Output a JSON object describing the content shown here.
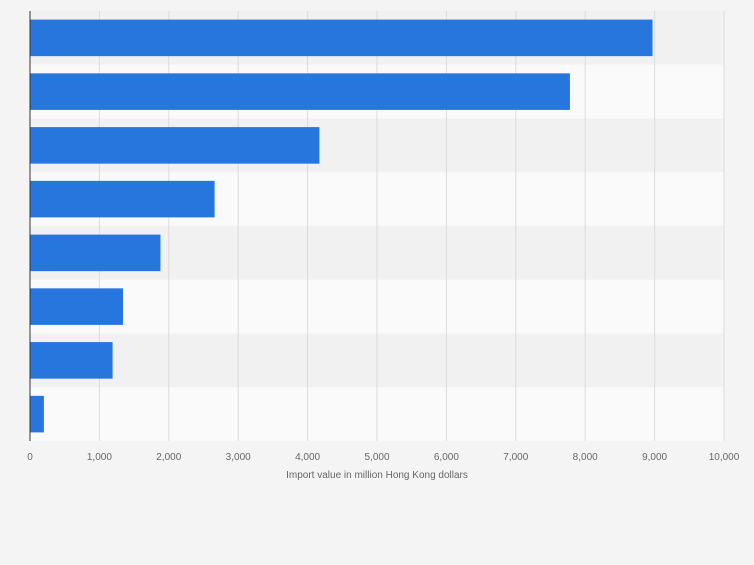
{
  "chart_data": {
    "type": "bar",
    "orientation": "horizontal",
    "categories": [
      "",
      "",
      "",
      "",
      "",
      "",
      "",
      ""
    ],
    "values": [
      8970,
      7780,
      4170,
      2660,
      1880,
      1340,
      1190,
      200
    ],
    "xlabel": "Import value in million Hong Kong dollars",
    "xlim": [
      0,
      10000
    ],
    "xticks": [
      0,
      1000,
      2000,
      3000,
      4000,
      5000,
      6000,
      7000,
      8000,
      9000,
      10000
    ],
    "xtick_labels": [
      "0",
      "1,000",
      "2,000",
      "3,000",
      "4,000",
      "5,000",
      "6,000",
      "7,000",
      "8,000",
      "9,000",
      "10,000"
    ],
    "grid": "vertical",
    "colors": {
      "bar": "#2776dd",
      "band_dark": "#f1f1f1",
      "band_light": "#fafafa",
      "grid": "#dcdcdc",
      "axis": "#333333",
      "tick_text": "#666666"
    }
  }
}
